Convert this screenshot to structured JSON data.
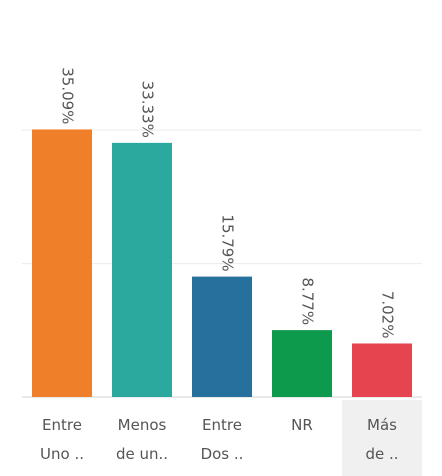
{
  "chart_data": {
    "type": "bar",
    "categories": [
      [
        "Entre",
        "Uno .."
      ],
      [
        "Menos",
        "de un.."
      ],
      [
        "Entre",
        "Dos .."
      ],
      [
        "NR"
      ],
      [
        "Más",
        "de .."
      ]
    ],
    "values": [
      35.09,
      33.33,
      15.79,
      8.77,
      7.02
    ],
    "value_labels": [
      "35.09%",
      "33.33%",
      "15.79%",
      "8.77%",
      "7.02%"
    ],
    "colors": [
      "#f07f2a",
      "#2ba99f",
      "#25709d",
      "#0e9a4c",
      "#e6454f"
    ],
    "ylim": [
      0,
      40
    ],
    "yticks": [
      0,
      17.5,
      35
    ],
    "grid": true
  }
}
